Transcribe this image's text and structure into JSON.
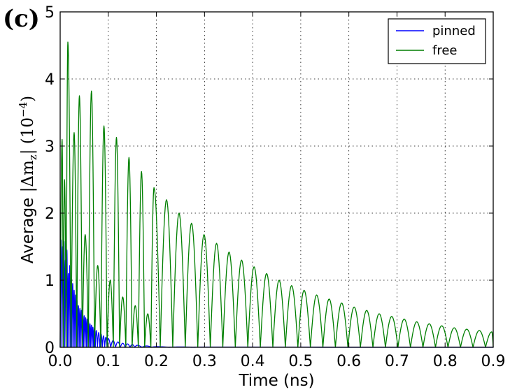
{
  "panel_label": "(c)",
  "chart_data": {
    "type": "line",
    "xlabel": "Time (ns)",
    "ylabel": "Average |Δm_z| (10^-4)",
    "ylabel_prefix": "Average ",
    "ylabel_math": "|Δm",
    "ylabel_sub": "z",
    "ylabel_unit": "| (10",
    "ylabel_exp": "−4",
    "ylabel_close": ")",
    "xlim": [
      0.0,
      0.9
    ],
    "ylim": [
      0,
      5
    ],
    "xticks": [
      0.0,
      0.1,
      0.2,
      0.3,
      0.4,
      0.5,
      0.6,
      0.7,
      0.8,
      0.9
    ],
    "xtick_labels": [
      "0.0",
      "0.1",
      "0.2",
      "0.3",
      "0.4",
      "0.5",
      "0.6",
      "0.7",
      "0.8",
      "0.9"
    ],
    "yticks": [
      0,
      1,
      2,
      3,
      4,
      5
    ],
    "ytick_labels": [
      "0",
      "1",
      "2",
      "3",
      "4",
      "5"
    ],
    "grid": true,
    "legend_position": "top-right",
    "series": [
      {
        "name": "pinned",
        "color": "#0000ff",
        "peaks": [
          [
            0.002,
            1.6
          ],
          [
            0.005,
            1.5
          ],
          [
            0.008,
            1.58
          ],
          [
            0.011,
            1.3
          ],
          [
            0.014,
            1.45
          ],
          [
            0.017,
            1.1
          ],
          [
            0.02,
            1.22
          ],
          [
            0.023,
            1.0
          ],
          [
            0.026,
            0.95
          ],
          [
            0.029,
            0.85
          ],
          [
            0.032,
            0.78
          ],
          [
            0.035,
            0.7
          ],
          [
            0.038,
            0.62
          ],
          [
            0.041,
            0.58
          ],
          [
            0.044,
            0.55
          ],
          [
            0.047,
            0.5
          ],
          [
            0.05,
            0.47
          ],
          [
            0.053,
            0.44
          ],
          [
            0.056,
            0.42
          ],
          [
            0.059,
            0.38
          ],
          [
            0.062,
            0.35
          ],
          [
            0.065,
            0.33
          ],
          [
            0.068,
            0.3
          ],
          [
            0.071,
            0.28
          ],
          [
            0.075,
            0.25
          ],
          [
            0.08,
            0.22
          ],
          [
            0.085,
            0.2
          ],
          [
            0.09,
            0.17
          ],
          [
            0.095,
            0.15
          ],
          [
            0.1,
            0.13
          ],
          [
            0.11,
            0.1
          ],
          [
            0.12,
            0.08
          ],
          [
            0.13,
            0.06
          ],
          [
            0.14,
            0.05
          ],
          [
            0.15,
            0.04
          ],
          [
            0.16,
            0.03
          ],
          [
            0.18,
            0.02
          ],
          [
            0.2,
            0.01
          ],
          [
            0.25,
            0.005
          ],
          [
            0.3,
            0.002
          ],
          [
            0.9,
            0.0
          ]
        ]
      },
      {
        "name": "free",
        "color": "#007f00",
        "peaks": [
          [
            0.004,
            3.1
          ],
          [
            0.009,
            2.5
          ],
          [
            0.016,
            4.55
          ],
          [
            0.029,
            3.2
          ],
          [
            0.04,
            3.75
          ],
          [
            0.052,
            1.68
          ],
          [
            0.065,
            3.82
          ],
          [
            0.078,
            1.22
          ],
          [
            0.091,
            3.3
          ],
          [
            0.104,
            1.0
          ],
          [
            0.117,
            3.13
          ],
          [
            0.13,
            0.75
          ],
          [
            0.143,
            2.83
          ],
          [
            0.156,
            0.62
          ],
          [
            0.169,
            2.62
          ],
          [
            0.182,
            0.5
          ],
          [
            0.195,
            2.38
          ],
          [
            0.221,
            2.2
          ],
          [
            0.247,
            2.0
          ],
          [
            0.273,
            1.85
          ],
          [
            0.299,
            1.68
          ],
          [
            0.325,
            1.55
          ],
          [
            0.351,
            1.42
          ],
          [
            0.377,
            1.3
          ],
          [
            0.403,
            1.2
          ],
          [
            0.429,
            1.1
          ],
          [
            0.455,
            1.0
          ],
          [
            0.481,
            0.92
          ],
          [
            0.507,
            0.85
          ],
          [
            0.533,
            0.78
          ],
          [
            0.559,
            0.72
          ],
          [
            0.585,
            0.66
          ],
          [
            0.611,
            0.6
          ],
          [
            0.637,
            0.55
          ],
          [
            0.663,
            0.5
          ],
          [
            0.689,
            0.46
          ],
          [
            0.715,
            0.42
          ],
          [
            0.741,
            0.38
          ],
          [
            0.767,
            0.35
          ],
          [
            0.793,
            0.32
          ],
          [
            0.819,
            0.29
          ],
          [
            0.845,
            0.27
          ],
          [
            0.871,
            0.25
          ],
          [
            0.897,
            0.23
          ]
        ]
      }
    ]
  }
}
